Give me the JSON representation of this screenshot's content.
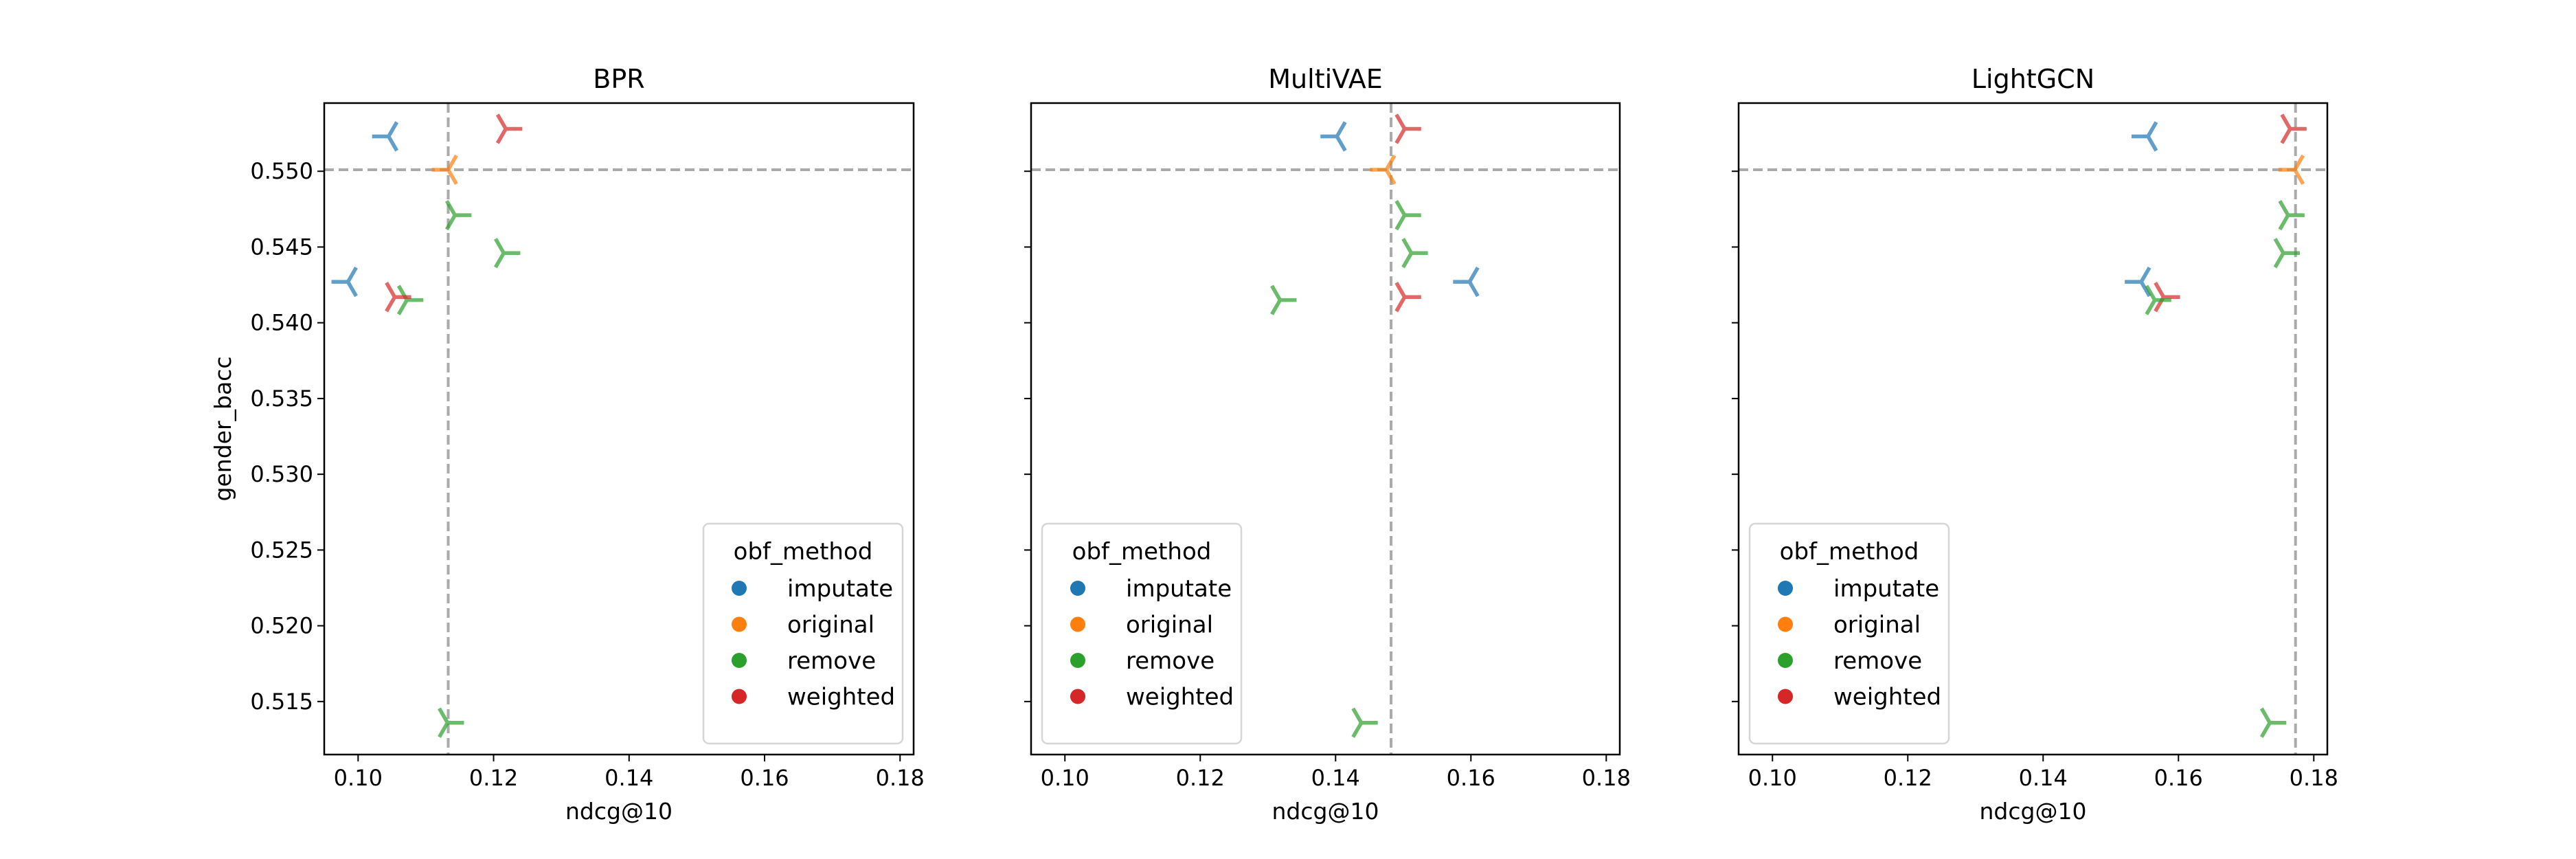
{
  "chart_data": [
    {
      "type": "scatter",
      "title": "BPR",
      "xlabel": "ndcg@10",
      "ylabel": "gender_bacc",
      "xlim": [
        0.095,
        0.182
      ],
      "ylim": [
        0.5115,
        0.5545
      ],
      "xticks": [
        "0.10",
        "0.12",
        "0.14",
        "0.16",
        "0.18"
      ],
      "yticks": [
        "0.515",
        "0.520",
        "0.525",
        "0.530",
        "0.535",
        "0.540",
        "0.545",
        "0.550"
      ],
      "ref_lines": {
        "x": 0.1133,
        "y": 0.5501
      },
      "points": [
        {
          "method": "imputate",
          "x": 0.1045,
          "y": 0.5523
        },
        {
          "method": "original",
          "x": 0.1133,
          "y": 0.5501
        },
        {
          "method": "remove",
          "x": 0.1143,
          "y": 0.5471
        },
        {
          "method": "remove",
          "x": 0.1215,
          "y": 0.5446
        },
        {
          "method": "imputate",
          "x": 0.0985,
          "y": 0.5427
        },
        {
          "method": "remove",
          "x": 0.1072,
          "y": 0.5415
        },
        {
          "method": "weighted",
          "x": 0.1054,
          "y": 0.5417
        },
        {
          "method": "weighted",
          "x": 0.1218,
          "y": 0.5528
        },
        {
          "method": "remove",
          "x": 0.1132,
          "y": 0.5136
        }
      ],
      "legend": {
        "title": "obf_method",
        "entries": [
          "imputate",
          "original",
          "remove",
          "weighted"
        ],
        "position": "lower right"
      }
    },
    {
      "type": "scatter",
      "title": "MultiVAE",
      "xlabel": "ndcg@10",
      "xlim": [
        0.095,
        0.182
      ],
      "ylim": [
        0.5115,
        0.5545
      ],
      "xticks": [
        "0.10",
        "0.12",
        "0.14",
        "0.16",
        "0.18"
      ],
      "ref_lines": {
        "x": 0.1482,
        "y": 0.5501
      },
      "points": [
        {
          "method": "imputate",
          "x": 0.1402,
          "y": 0.5523
        },
        {
          "method": "weighted",
          "x": 0.1502,
          "y": 0.5528
        },
        {
          "method": "original",
          "x": 0.1475,
          "y": 0.5501
        },
        {
          "method": "remove",
          "x": 0.1502,
          "y": 0.5471
        },
        {
          "method": "remove",
          "x": 0.1512,
          "y": 0.5446
        },
        {
          "method": "imputate",
          "x": 0.1598,
          "y": 0.5427
        },
        {
          "method": "weighted",
          "x": 0.1502,
          "y": 0.5417
        },
        {
          "method": "remove",
          "x": 0.1318,
          "y": 0.5415
        },
        {
          "method": "remove",
          "x": 0.1438,
          "y": 0.5136
        }
      ],
      "legend": {
        "title": "obf_method",
        "entries": [
          "imputate",
          "original",
          "remove",
          "weighted"
        ],
        "position": "lower left"
      }
    },
    {
      "type": "scatter",
      "title": "LightGCN",
      "xlabel": "ndcg@10",
      "xlim": [
        0.095,
        0.182
      ],
      "ylim": [
        0.5115,
        0.5545
      ],
      "xticks": [
        "0.10",
        "0.12",
        "0.14",
        "0.16",
        "0.18"
      ],
      "ref_lines": {
        "x": 0.1773,
        "y": 0.5501
      },
      "points": [
        {
          "method": "imputate",
          "x": 0.1555,
          "y": 0.5523
        },
        {
          "method": "weighted",
          "x": 0.1765,
          "y": 0.5528
        },
        {
          "method": "original",
          "x": 0.1772,
          "y": 0.5501
        },
        {
          "method": "remove",
          "x": 0.1762,
          "y": 0.5471
        },
        {
          "method": "remove",
          "x": 0.1755,
          "y": 0.5446
        },
        {
          "method": "imputate",
          "x": 0.1545,
          "y": 0.5427
        },
        {
          "method": "weighted",
          "x": 0.1578,
          "y": 0.5417
        },
        {
          "method": "remove",
          "x": 0.1565,
          "y": 0.5415
        },
        {
          "method": "remove",
          "x": 0.1735,
          "y": 0.5136
        }
      ],
      "legend": {
        "title": "obf_method",
        "entries": [
          "imputate",
          "original",
          "remove",
          "weighted"
        ],
        "position": "lower left"
      }
    }
  ],
  "colors": {
    "imputate": "#1f77b4",
    "original": "#ff7f0e",
    "remove": "#2ca02c",
    "weighted": "#d62728",
    "ref_line": "#aaaaaa"
  },
  "marker_alpha": 0.7
}
